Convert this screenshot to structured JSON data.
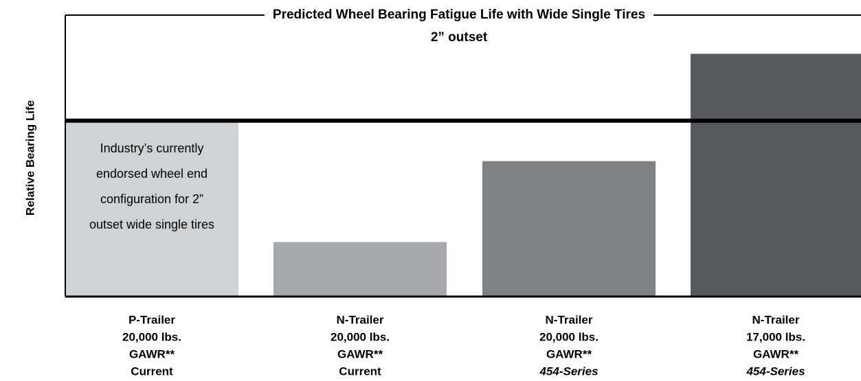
{
  "chart_data": {
    "type": "bar",
    "title": "Predicted Wheel Bearing Fatigue Life with Wide Single Tires",
    "subtitle": "2” outset",
    "y_label": "Relative Bearing Life",
    "categories": [
      [
        "P-Trailer",
        "20,000 lbs.",
        "GAWR**",
        "Current"
      ],
      [
        "N-Trailer",
        "20,000 lbs.",
        "GAWR**",
        "Current"
      ],
      [
        "N-Trailer",
        "20,000 lbs.",
        "GAWR**",
        "454-Series"
      ],
      [
        "N-Trailer",
        "17,000 lbs.",
        "GAWR**",
        "454-Series"
      ]
    ],
    "values": [
      1,
      0.31,
      0.77,
      1.38
    ],
    "colors": [
      "#d1d2d4",
      "#a7a8ab",
      "#808184",
      "#58595b"
    ],
    "ylim": [
      0,
      1.6
    ],
    "reference_line": 1,
    "annotation": [
      "Industry’s currently",
      "endorsed wheel end",
      "configuration for 2”",
      "outset wide single tires"
    ]
  }
}
